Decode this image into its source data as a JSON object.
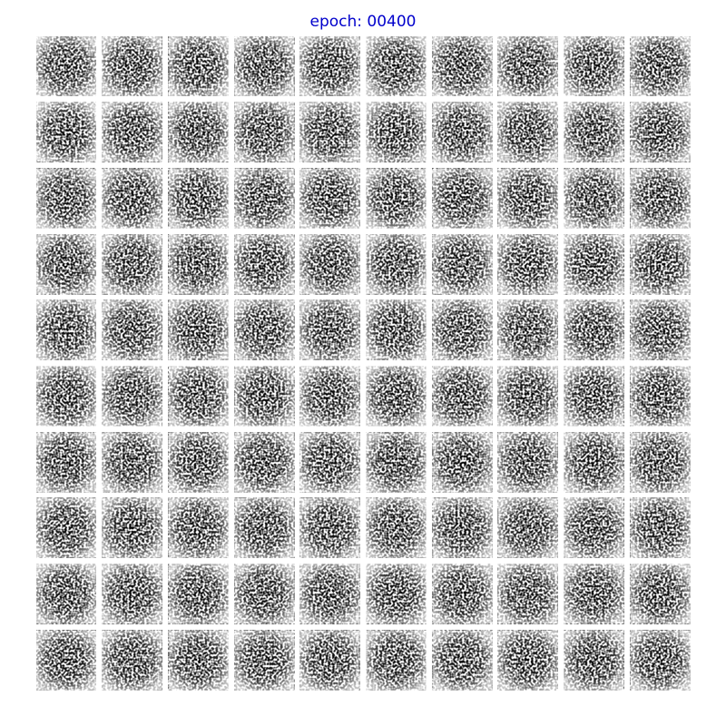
{
  "title": "epoch: 00400"
}
